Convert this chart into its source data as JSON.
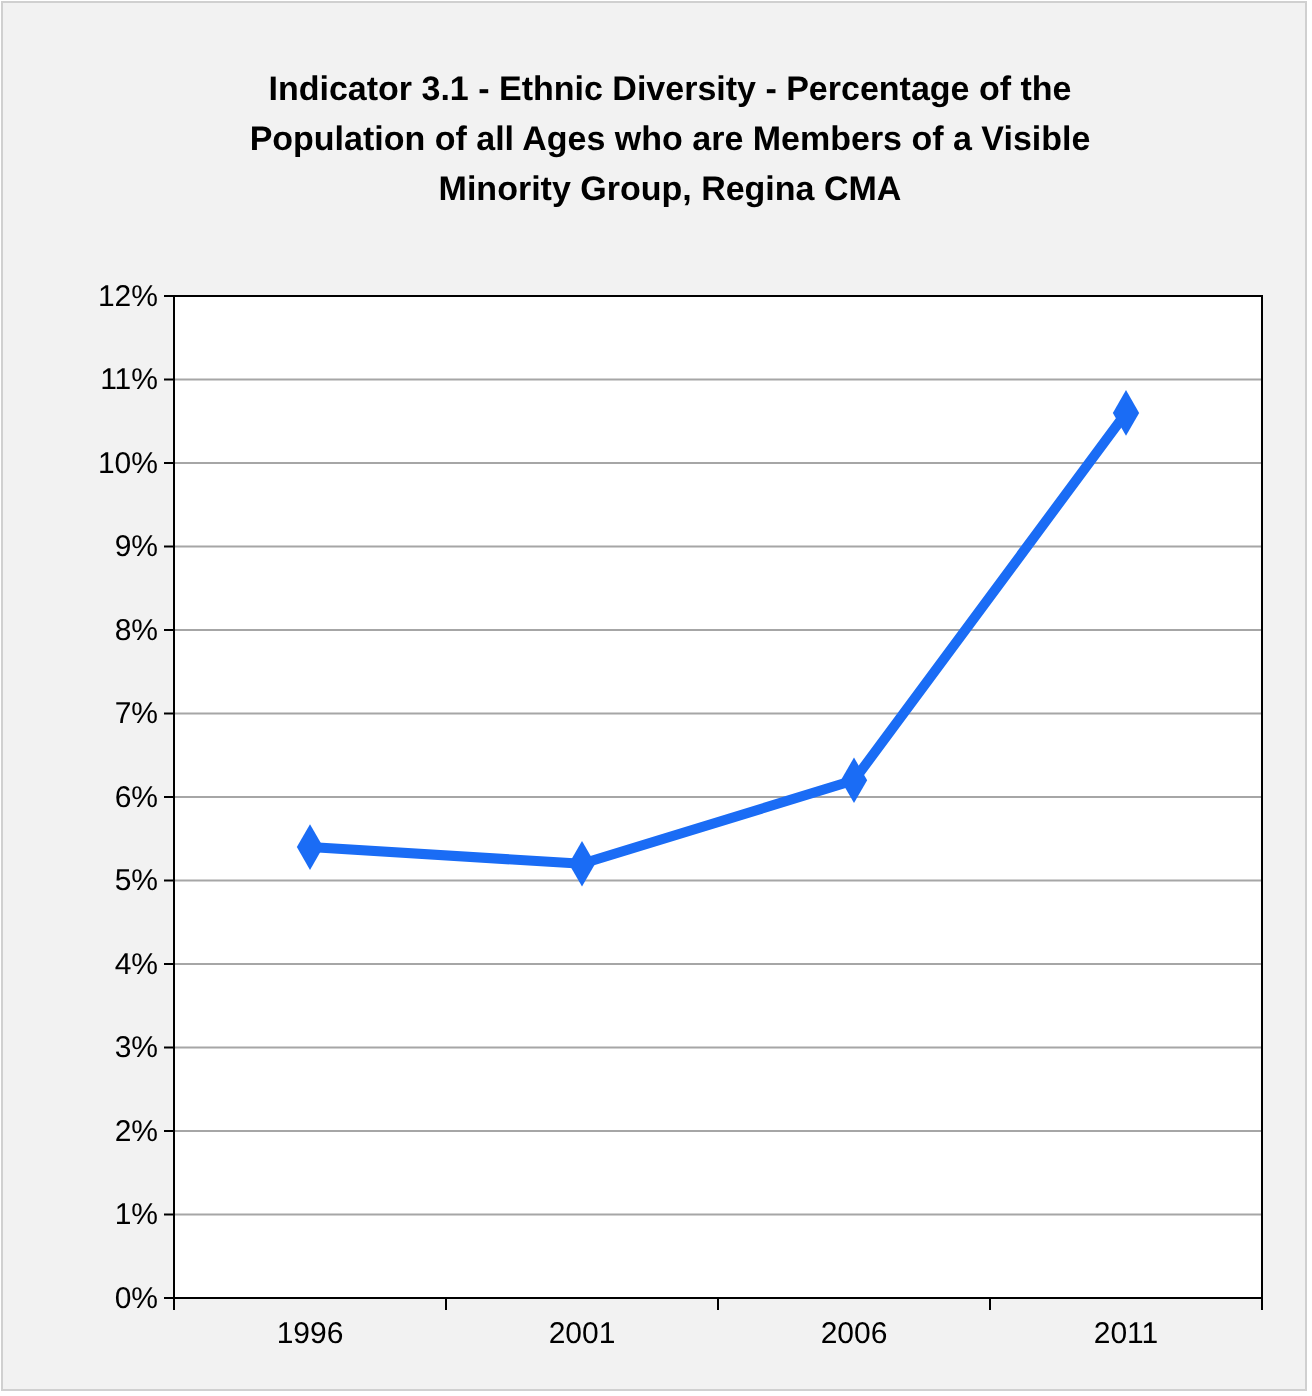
{
  "chart_data": {
    "type": "line",
    "title": "Indicator 3.1 - Ethnic Diversity - Percentage of the Population of all Ages who are Members of a Visible Minority Group, Regina CMA",
    "categories": [
      "1996",
      "2001",
      "2006",
      "2011"
    ],
    "series": [
      {
        "color": "#1a6cf5",
        "values": [
          5.4,
          5.2,
          6.2,
          10.6
        ]
      }
    ],
    "ylim": [
      0,
      12
    ],
    "yticks": [
      {
        "value": 0,
        "label": "0%"
      },
      {
        "value": 1,
        "label": "1%"
      },
      {
        "value": 2,
        "label": "2%"
      },
      {
        "value": 3,
        "label": "3%"
      },
      {
        "value": 4,
        "label": "4%"
      },
      {
        "value": 5,
        "label": "5%"
      },
      {
        "value": 6,
        "label": "6%"
      },
      {
        "value": 7,
        "label": "7%"
      },
      {
        "value": 8,
        "label": "8%"
      },
      {
        "value": 9,
        "label": "9%"
      },
      {
        "value": 10,
        "label": "10%"
      },
      {
        "value": 11,
        "label": "11%"
      },
      {
        "value": 12,
        "label": "12%"
      }
    ],
    "grid": "y",
    "marker": "diamond",
    "line_style": "solid"
  }
}
